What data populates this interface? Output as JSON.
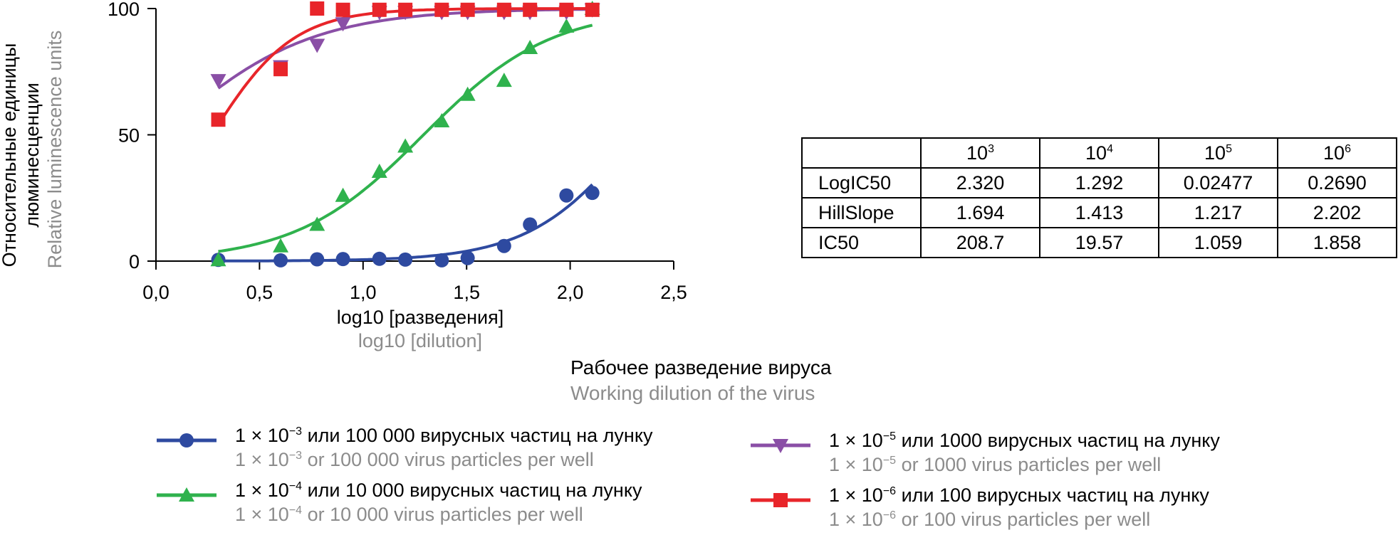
{
  "chart_data": {
    "type": "scatter",
    "ylabel_ru_line1": "Относительные единицы",
    "ylabel_ru_line2": "люминесценции",
    "ylabel_en": "Relative luminescence units",
    "xlabel_ru": "log10 [разведения]",
    "xlabel_en": "log10 [dilution]",
    "xlim": [
      0,
      2.5
    ],
    "ylim": [
      0,
      100
    ],
    "x_ticks": [
      "0,0",
      "0,5",
      "1,0",
      "1,5",
      "2,0",
      "2,5"
    ],
    "x_tick_values": [
      0,
      0.5,
      1.0,
      1.5,
      2.0,
      2.5
    ],
    "y_ticks": [
      "0",
      "50",
      "100"
    ],
    "y_tick_values": [
      0,
      50,
      100
    ],
    "series": [
      {
        "name": "1e-3",
        "color": "#2e4aa0",
        "marker": "circle",
        "x": [
          0.301,
          0.602,
          0.778,
          0.903,
          1.079,
          1.204,
          1.38,
          1.505,
          1.681,
          1.806,
          1.982,
          2.107
        ],
        "y": [
          0.5,
          0.3,
          0.7,
          0.8,
          0.9,
          0.6,
          0.3,
          1.2,
          6,
          14.5,
          26,
          27
        ],
        "fit_log_ic50": 2.32,
        "fit_hill": 1.694
      },
      {
        "name": "1e-4",
        "color": "#2fb24d",
        "marker": "triangle-up",
        "x": [
          0.301,
          0.602,
          0.778,
          0.903,
          1.079,
          1.204,
          1.38,
          1.505,
          1.681,
          1.806,
          1.982,
          2.107
        ],
        "y": [
          0.5,
          6,
          14.5,
          26,
          35.5,
          45.5,
          55.5,
          66,
          71.5,
          84.5,
          93,
          100
        ],
        "fit_log_ic50": 1.292,
        "fit_hill": 1.413
      },
      {
        "name": "1e-5",
        "color": "#8a4fa6",
        "marker": "triangle-down",
        "x": [
          0.301,
          0.602,
          0.778,
          0.903,
          1.079,
          1.204,
          1.38,
          1.505,
          1.681,
          1.806,
          1.982,
          2.107
        ],
        "y": [
          71.5,
          77,
          85.5,
          94,
          98.5,
          98.5,
          98.5,
          98.5,
          98.5,
          98.5,
          98.5,
          99.5
        ],
        "fit_log_ic50": 0.02477,
        "fit_hill": 1.217
      },
      {
        "name": "1e-6",
        "color": "#e8252a",
        "marker": "square",
        "x": [
          0.301,
          0.602,
          0.778,
          0.903,
          1.079,
          1.204,
          1.38,
          1.505,
          1.681,
          1.806,
          1.982,
          2.107
        ],
        "y": [
          56,
          76,
          100,
          99.5,
          99.5,
          99.5,
          99.5,
          99.5,
          99.5,
          99.5,
          99.5,
          99.5
        ],
        "fit_log_ic50": 0.269,
        "fit_hill": 2.202
      }
    ]
  },
  "dilution_title": {
    "ru": "Рабочее разведение вируса",
    "en": "Working dilution of the virus"
  },
  "table": {
    "headers": [
      {
        "base": "10",
        "exp": "3"
      },
      {
        "base": "10",
        "exp": "4"
      },
      {
        "base": "10",
        "exp": "5"
      },
      {
        "base": "10",
        "exp": "6"
      }
    ],
    "rows": [
      {
        "label": "LogIC50",
        "values": [
          "2.320",
          "1.292",
          "0.02477",
          "0.2690"
        ]
      },
      {
        "label": "HillSlope",
        "values": [
          "1.694",
          "1.413",
          "1.217",
          "2.202"
        ]
      },
      {
        "label": "IC50",
        "values": [
          "208.7",
          "19.57",
          "1.059",
          "1.858"
        ]
      }
    ]
  },
  "legend": [
    {
      "marker": "circle",
      "color": "#2e4aa0",
      "ru_pre": "1 × 10",
      "ru_exp": "−3",
      "ru_post": " или 100 000 вирусных частиц на лунку",
      "en_pre": "1 × 10",
      "en_exp": "−3",
      "en_post": " or 100 000 virus particles per well"
    },
    {
      "marker": "triangle-up",
      "color": "#2fb24d",
      "ru_pre": "1 × 10",
      "ru_exp": "−4",
      "ru_post": " или 10 000 вирусных частиц на лунку",
      "en_pre": "1 × 10",
      "en_exp": "−4",
      "en_post": " or 10 000 virus particles per well"
    },
    {
      "marker": "triangle-down",
      "color": "#8a4fa6",
      "ru_pre": "1 × 10",
      "ru_exp": "−5",
      "ru_post": " или 1000 вирусных частиц на лунку",
      "en_pre": "1 × 10",
      "en_exp": "−5",
      "en_post": " or 1000 virus particles per well"
    },
    {
      "marker": "square",
      "color": "#e8252a",
      "ru_pre": "1 × 10",
      "ru_exp": "−6",
      "ru_post": " или 100 вирусных частиц на лунку",
      "en_pre": "1 × 10",
      "en_exp": "−6",
      "en_post": " or 100 virus particles per well"
    }
  ]
}
